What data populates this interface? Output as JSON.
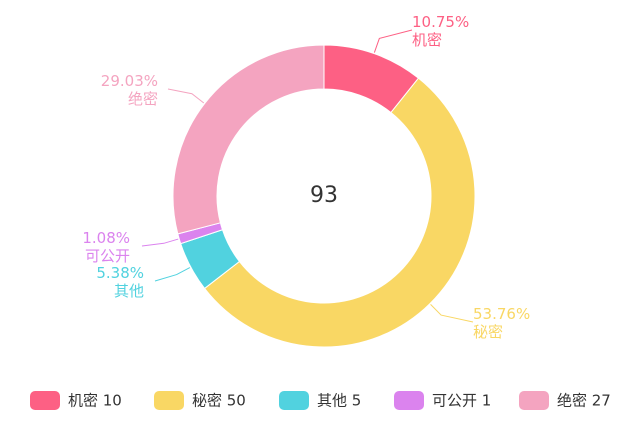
{
  "chart_data": {
    "type": "pie",
    "variant": "donut",
    "total": 93,
    "center_label": "93",
    "slices": [
      {
        "name": "机密",
        "value": 10,
        "percent_label": "10.75%",
        "color": "#fd6084"
      },
      {
        "name": "秘密",
        "value": 50,
        "percent_label": "53.76%",
        "color": "#f9d764"
      },
      {
        "name": "其他",
        "value": 5,
        "percent_label": "5.38%",
        "color": "#51d2df"
      },
      {
        "name": "可公开",
        "value": 1,
        "percent_label": "1.08%",
        "color": "#db83ee"
      },
      {
        "name": "绝密",
        "value": 27,
        "percent_label": "29.03%",
        "color": "#f4a4c0"
      }
    ],
    "legend_position": "bottom",
    "legend_entries": [
      {
        "label": "机密",
        "value": "10"
      },
      {
        "label": "秘密",
        "value": "50"
      },
      {
        "label": "其他",
        "value": "5"
      },
      {
        "label": "可公开",
        "value": "1"
      },
      {
        "label": "绝密",
        "value": "27"
      }
    ]
  }
}
